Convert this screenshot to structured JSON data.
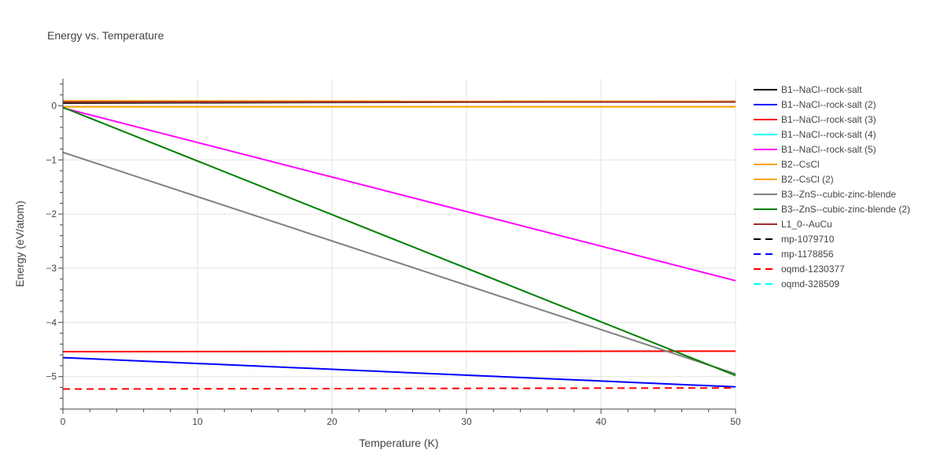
{
  "chart_data": {
    "type": "line",
    "title": "Energy vs. Temperature",
    "xlabel": "Temperature (K)",
    "ylabel": "Energy (eV/atom)",
    "xlim": [
      0,
      50
    ],
    "ylim": [
      -5.6,
      0.5
    ],
    "xticks": [
      0,
      10,
      20,
      30,
      40,
      50
    ],
    "yticks": [
      0,
      -1,
      -2,
      -3,
      -4,
      -5
    ],
    "xtick_labels": [
      "0",
      "10",
      "20",
      "30",
      "40",
      "50"
    ],
    "ytick_labels": [
      "0",
      "−1",
      "−2",
      "−3",
      "−4",
      "−5"
    ],
    "grid": true,
    "legend_position": "right",
    "series": [
      {
        "name": "B1--NaCl--rock-salt",
        "color": "#000000",
        "dash": "solid",
        "x": [
          0,
          50
        ],
        "y": [
          0.05,
          0.08
        ]
      },
      {
        "name": "B1--NaCl--rock-salt (2)",
        "color": "#0000ff",
        "dash": "solid",
        "x": [
          0,
          50
        ],
        "y": [
          -4.65,
          -5.19
        ]
      },
      {
        "name": "B1--NaCl--rock-salt (3)",
        "color": "#ff0000",
        "dash": "solid",
        "x": [
          0,
          50
        ],
        "y": [
          -4.54,
          -4.53
        ]
      },
      {
        "name": "B1--NaCl--rock-salt (4)",
        "color": "#00ffff",
        "dash": "solid",
        "x": [
          0,
          50
        ],
        "y": [
          0.07,
          0.07
        ]
      },
      {
        "name": "B1--NaCl--rock-salt (5)",
        "color": "#ff00ff",
        "dash": "solid",
        "x": [
          0,
          50
        ],
        "y": [
          -0.04,
          -3.23
        ]
      },
      {
        "name": "B2--CsCl",
        "color": "#ffa500",
        "dash": "solid",
        "x": [
          0,
          50
        ],
        "y": [
          -0.02,
          -0.02
        ]
      },
      {
        "name": "B2--CsCl (2)",
        "color": "#ffa500",
        "dash": "solid",
        "x": [
          0,
          50
        ],
        "y": [
          0.09,
          0.08
        ]
      },
      {
        "name": "B3--ZnS--cubic-zinc-blende",
        "color": "#808080",
        "dash": "solid",
        "x": [
          0,
          50
        ],
        "y": [
          -0.86,
          -4.95
        ]
      },
      {
        "name": "B3--ZnS--cubic-zinc-blende (2)",
        "color": "#008000",
        "dash": "solid",
        "x": [
          0,
          50
        ],
        "y": [
          -0.03,
          -4.98
        ]
      },
      {
        "name": "L1_0--AuCu",
        "color": "#a52a2a",
        "dash": "solid",
        "x": [
          0,
          50
        ],
        "y": [
          0.07,
          0.07
        ]
      },
      {
        "name": "mp-1079710",
        "color": "#000000",
        "dash": "dash",
        "x": [],
        "y": []
      },
      {
        "name": "mp-1178856",
        "color": "#0000ff",
        "dash": "dash",
        "x": [],
        "y": []
      },
      {
        "name": "oqmd-1230377",
        "color": "#ff0000",
        "dash": "dash",
        "x": [
          0,
          50
        ],
        "y": [
          -5.23,
          -5.21
        ]
      },
      {
        "name": "oqmd-328509",
        "color": "#00ffff",
        "dash": "dash",
        "x": [],
        "y": []
      }
    ]
  }
}
